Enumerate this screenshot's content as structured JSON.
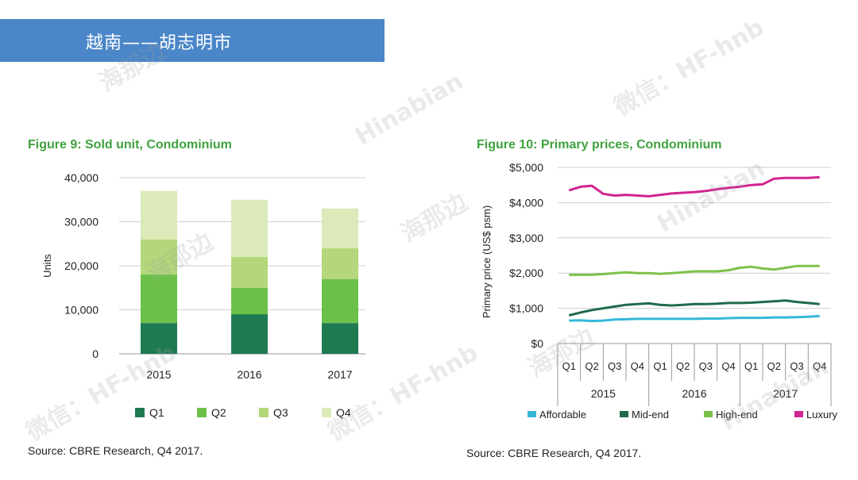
{
  "header": {
    "title": "越南——胡志明市"
  },
  "watermark": {
    "brand": "海那边",
    "latin": "Hinabian",
    "wechat": "微信：HF-hnb"
  },
  "colors": {
    "banner": "#4a86c8",
    "title_green": "#3fa23f",
    "q1": "#1f7a52",
    "q2": "#6cc04a",
    "q3": "#b3d77a",
    "q4": "#dbeab8",
    "affordable": "#35b8d8",
    "mid_end": "#1f6b4a",
    "high_end": "#7cc14a",
    "luxury": "#d0248f"
  },
  "chart_data": [
    {
      "type": "bar",
      "stacked": true,
      "title": "Figure 9: Sold unit, Condominium",
      "ylabel": "Units",
      "ylim": [
        0,
        40000
      ],
      "yticks": [
        "0",
        "10,000",
        "20,000",
        "30,000",
        "40,000"
      ],
      "categories": [
        "2015",
        "2016",
        "2017"
      ],
      "series": [
        {
          "name": "Q1",
          "values": [
            7000,
            9000,
            7000
          ]
        },
        {
          "name": "Q2",
          "values": [
            11000,
            6000,
            10000
          ]
        },
        {
          "name": "Q3",
          "values": [
            8000,
            7000,
            7000
          ]
        },
        {
          "name": "Q4",
          "values": [
            11000,
            13000,
            9000
          ]
        }
      ],
      "legend_position": "bottom",
      "grid": true,
      "source": "Source: CBRE Research, Q4 2017."
    },
    {
      "type": "line",
      "title": "Figure 10: Primary prices, Condominium",
      "ylabel": "Primary price (US$ psm)",
      "ylim": [
        0,
        5000
      ],
      "yticks": [
        "$0",
        "$1,000",
        "$2,000",
        "$3,000",
        "$4,000",
        "$5,000"
      ],
      "quarters": [
        "Q1",
        "Q2",
        "Q3",
        "Q4",
        "Q1",
        "Q2",
        "Q3",
        "Q4",
        "Q1",
        "Q2",
        "Q3",
        "Q4"
      ],
      "years": [
        "2015",
        "2016",
        "2017"
      ],
      "x": [
        0,
        0.5,
        1,
        1.5,
        2,
        2.5,
        3,
        3.5,
        4,
        4.5,
        5,
        5.5,
        6,
        6.5,
        7,
        7.5,
        8,
        8.5,
        9,
        9.5,
        10,
        10.5,
        11
      ],
      "series": [
        {
          "name": "Affordable",
          "values": [
            650,
            660,
            640,
            650,
            680,
            690,
            700,
            700,
            700,
            700,
            700,
            700,
            710,
            710,
            720,
            730,
            730,
            730,
            740,
            740,
            750,
            760,
            780
          ]
        },
        {
          "name": "Mid-end",
          "values": [
            800,
            880,
            950,
            1000,
            1050,
            1100,
            1120,
            1140,
            1100,
            1080,
            1100,
            1120,
            1120,
            1130,
            1150,
            1150,
            1160,
            1180,
            1200,
            1220,
            1180,
            1150,
            1120
          ]
        },
        {
          "name": "High-end",
          "values": [
            1950,
            1950,
            1950,
            1970,
            2000,
            2020,
            2000,
            2000,
            1980,
            2000,
            2020,
            2050,
            2050,
            2050,
            2080,
            2150,
            2180,
            2130,
            2100,
            2150,
            2200,
            2200,
            2200
          ]
        },
        {
          "name": "Luxury",
          "values": [
            4350,
            4450,
            4480,
            4250,
            4200,
            4220,
            4200,
            4180,
            4220,
            4260,
            4280,
            4300,
            4330,
            4380,
            4420,
            4450,
            4500,
            4520,
            4680,
            4700,
            4700,
            4700,
            4720
          ]
        }
      ],
      "legend_position": "bottom",
      "grid": true,
      "source": "Source: CBRE Research, Q4 2017."
    }
  ]
}
